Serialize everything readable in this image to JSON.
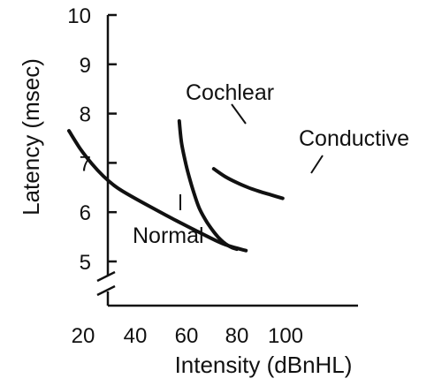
{
  "chart_data": {
    "type": "line",
    "title": "",
    "xlabel": "Intensity (dBnHL)",
    "ylabel": "Latency (msec)",
    "xlim": [
      0,
      115
    ],
    "ylim": [
      4.2,
      10
    ],
    "x_ticks": [
      20,
      40,
      60,
      80,
      100
    ],
    "x_tick_labels": [
      "20",
      "40",
      "60",
      "80",
      "100"
    ],
    "y_ticks": [
      5,
      6,
      7,
      8,
      9,
      10
    ],
    "y_tick_labels": [
      "5",
      "6",
      "7",
      "8",
      "9",
      "10"
    ],
    "y_axis_break": true,
    "grid": false,
    "legend": "none",
    "series": [
      {
        "name": "Normal",
        "x": [
          15,
          20,
          25,
          30,
          35,
          40,
          50,
          60,
          70,
          80,
          85,
          92
        ],
        "y": [
          7.65,
          7.28,
          6.98,
          6.73,
          6.53,
          6.38,
          6.12,
          5.87,
          5.63,
          5.4,
          5.31,
          5.22
        ]
      },
      {
        "name": "Cochlear",
        "x": [
          63,
          64,
          66,
          68,
          70,
          72,
          75,
          78,
          80,
          82,
          84,
          86,
          88
        ],
        "y": [
          7.85,
          7.4,
          6.95,
          6.6,
          6.3,
          6.05,
          5.8,
          5.6,
          5.49,
          5.4,
          5.33,
          5.28,
          5.25
        ]
      },
      {
        "name": "Conductive",
        "x": [
          78,
          83,
          88,
          93,
          98,
          103,
          108
        ],
        "y": [
          6.88,
          6.72,
          6.6,
          6.5,
          6.42,
          6.35,
          6.28
        ]
      }
    ]
  }
}
